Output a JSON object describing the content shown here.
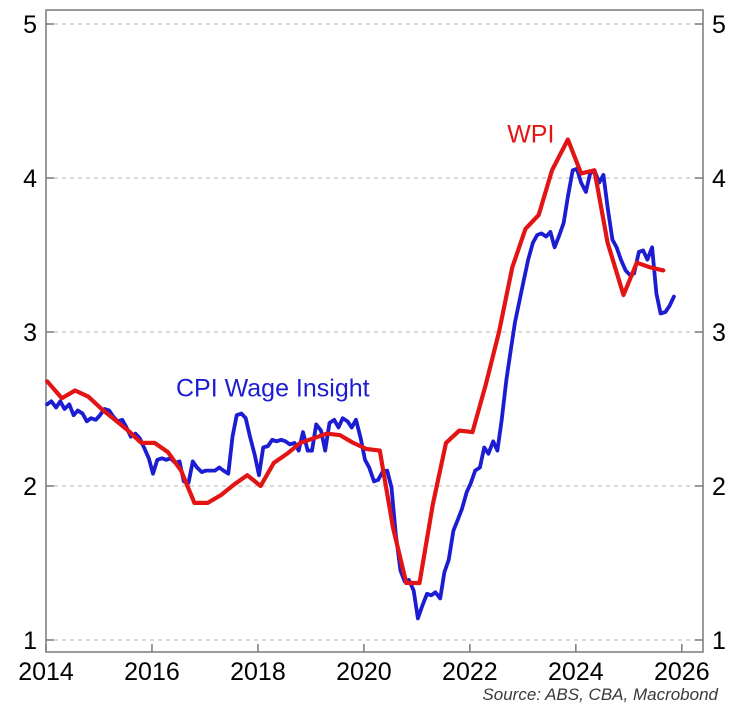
{
  "chart_data": {
    "type": "line",
    "title": "",
    "xlabel": "",
    "ylabel": "",
    "source": "Source: ABS, CBA, Macrobond",
    "grid": {
      "horizontal": true,
      "style": "dashed"
    },
    "x_axis": {
      "ticks": [
        2014,
        2016,
        2018,
        2020,
        2022,
        2024,
        2026
      ],
      "range": [
        2014,
        2026.4
      ]
    },
    "y_axis": {
      "ticks": [
        1,
        2,
        3,
        4,
        5
      ],
      "range": [
        0.922,
        5.091
      ],
      "labels_on": "both"
    },
    "series": [
      {
        "name": "CPI Wage Insight",
        "color": "#1c1cd2",
        "line_width": 3.8,
        "frequency": "monthly",
        "label": {
          "text": "CPI Wage Insight",
          "x": 2018.28,
          "y": 2.64
        },
        "points": [
          [
            2014.02,
            2.53
          ],
          [
            2014.1,
            2.55
          ],
          [
            2014.19,
            2.51
          ],
          [
            2014.27,
            2.55
          ],
          [
            2014.35,
            2.5
          ],
          [
            2014.44,
            2.53
          ],
          [
            2014.52,
            2.46
          ],
          [
            2014.6,
            2.49
          ],
          [
            2014.69,
            2.47
          ],
          [
            2014.77,
            2.42
          ],
          [
            2014.85,
            2.44
          ],
          [
            2014.94,
            2.43
          ],
          [
            2015.02,
            2.46
          ],
          [
            2015.1,
            2.5
          ],
          [
            2015.19,
            2.49
          ],
          [
            2015.27,
            2.45
          ],
          [
            2015.35,
            2.42
          ],
          [
            2015.44,
            2.43
          ],
          [
            2015.52,
            2.38
          ],
          [
            2015.6,
            2.32
          ],
          [
            2015.69,
            2.34
          ],
          [
            2015.77,
            2.31
          ],
          [
            2015.85,
            2.25
          ],
          [
            2015.94,
            2.18
          ],
          [
            2016.02,
            2.08
          ],
          [
            2016.1,
            2.17
          ],
          [
            2016.19,
            2.18
          ],
          [
            2016.27,
            2.17
          ],
          [
            2016.35,
            2.18
          ],
          [
            2016.44,
            2.15
          ],
          [
            2016.52,
            2.16
          ],
          [
            2016.6,
            2.03
          ],
          [
            2016.69,
            2.02
          ],
          [
            2016.77,
            2.16
          ],
          [
            2016.85,
            2.12
          ],
          [
            2016.94,
            2.09
          ],
          [
            2017.02,
            2.1
          ],
          [
            2017.1,
            2.1
          ],
          [
            2017.19,
            2.1
          ],
          [
            2017.27,
            2.12
          ],
          [
            2017.35,
            2.1
          ],
          [
            2017.44,
            2.08
          ],
          [
            2017.52,
            2.32
          ],
          [
            2017.6,
            2.46
          ],
          [
            2017.69,
            2.47
          ],
          [
            2017.77,
            2.44
          ],
          [
            2017.85,
            2.32
          ],
          [
            2017.94,
            2.2
          ],
          [
            2018.02,
            2.07
          ],
          [
            2018.1,
            2.25
          ],
          [
            2018.19,
            2.26
          ],
          [
            2018.27,
            2.3
          ],
          [
            2018.35,
            2.29
          ],
          [
            2018.44,
            2.3
          ],
          [
            2018.52,
            2.29
          ],
          [
            2018.6,
            2.27
          ],
          [
            2018.69,
            2.28
          ],
          [
            2018.77,
            2.23
          ],
          [
            2018.85,
            2.35
          ],
          [
            2018.94,
            2.23
          ],
          [
            2019.02,
            2.23
          ],
          [
            2019.1,
            2.4
          ],
          [
            2019.19,
            2.36
          ],
          [
            2019.27,
            2.23
          ],
          [
            2019.35,
            2.41
          ],
          [
            2019.44,
            2.43
          ],
          [
            2019.52,
            2.38
          ],
          [
            2019.6,
            2.44
          ],
          [
            2019.69,
            2.42
          ],
          [
            2019.77,
            2.38
          ],
          [
            2019.85,
            2.43
          ],
          [
            2019.94,
            2.31
          ],
          [
            2020.02,
            2.17
          ],
          [
            2020.1,
            2.12
          ],
          [
            2020.19,
            2.03
          ],
          [
            2020.27,
            2.04
          ],
          [
            2020.35,
            2.09
          ],
          [
            2020.44,
            2.1
          ],
          [
            2020.52,
            1.99
          ],
          [
            2020.6,
            1.69
          ],
          [
            2020.69,
            1.45
          ],
          [
            2020.77,
            1.38
          ],
          [
            2020.85,
            1.39
          ],
          [
            2020.94,
            1.32
          ],
          [
            2021.02,
            1.14
          ],
          [
            2021.1,
            1.22
          ],
          [
            2021.19,
            1.3
          ],
          [
            2021.27,
            1.29
          ],
          [
            2021.35,
            1.31
          ],
          [
            2021.44,
            1.27
          ],
          [
            2021.52,
            1.44
          ],
          [
            2021.6,
            1.52
          ],
          [
            2021.69,
            1.71
          ],
          [
            2021.77,
            1.78
          ],
          [
            2021.85,
            1.85
          ],
          [
            2021.94,
            1.96
          ],
          [
            2022.02,
            2.02
          ],
          [
            2022.1,
            2.1
          ],
          [
            2022.19,
            2.12
          ],
          [
            2022.27,
            2.25
          ],
          [
            2022.35,
            2.21
          ],
          [
            2022.44,
            2.29
          ],
          [
            2022.52,
            2.23
          ],
          [
            2022.6,
            2.43
          ],
          [
            2022.69,
            2.69
          ],
          [
            2022.77,
            2.88
          ],
          [
            2022.85,
            3.06
          ],
          [
            2022.94,
            3.21
          ],
          [
            2023.02,
            3.34
          ],
          [
            2023.1,
            3.47
          ],
          [
            2023.19,
            3.58
          ],
          [
            2023.27,
            3.63
          ],
          [
            2023.35,
            3.64
          ],
          [
            2023.44,
            3.62
          ],
          [
            2023.52,
            3.65
          ],
          [
            2023.6,
            3.55
          ],
          [
            2023.69,
            3.63
          ],
          [
            2023.77,
            3.71
          ],
          [
            2023.85,
            3.88
          ],
          [
            2023.94,
            4.05
          ],
          [
            2024.02,
            4.06
          ],
          [
            2024.1,
            3.97
          ],
          [
            2024.19,
            3.91
          ],
          [
            2024.27,
            4.03
          ],
          [
            2024.35,
            4.05
          ],
          [
            2024.44,
            3.97
          ],
          [
            2024.52,
            4.02
          ],
          [
            2024.6,
            3.81
          ],
          [
            2024.69,
            3.6
          ],
          [
            2024.77,
            3.55
          ],
          [
            2024.85,
            3.47
          ],
          [
            2024.94,
            3.4
          ],
          [
            2025.02,
            3.37
          ],
          [
            2025.1,
            3.38
          ],
          [
            2025.19,
            3.52
          ],
          [
            2025.27,
            3.53
          ],
          [
            2025.35,
            3.47
          ],
          [
            2025.44,
            3.55
          ],
          [
            2025.52,
            3.25
          ],
          [
            2025.6,
            3.12
          ],
          [
            2025.69,
            3.13
          ],
          [
            2025.77,
            3.17
          ],
          [
            2025.85,
            3.23
          ]
        ]
      },
      {
        "name": "WPI",
        "color": "#e31414",
        "line_width": 4.2,
        "frequency": "quarterly",
        "label": {
          "text": "WPI",
          "x": 2023.15,
          "y": 4.29
        },
        "points": [
          [
            2014.02,
            2.68
          ],
          [
            2014.3,
            2.57
          ],
          [
            2014.55,
            2.62
          ],
          [
            2014.8,
            2.58
          ],
          [
            2015.05,
            2.5
          ],
          [
            2015.3,
            2.43
          ],
          [
            2015.55,
            2.36
          ],
          [
            2015.8,
            2.28
          ],
          [
            2016.05,
            2.28
          ],
          [
            2016.3,
            2.22
          ],
          [
            2016.55,
            2.1
          ],
          [
            2016.8,
            1.89
          ],
          [
            2017.05,
            1.89
          ],
          [
            2017.3,
            1.94
          ],
          [
            2017.55,
            2.01
          ],
          [
            2017.8,
            2.07
          ],
          [
            2018.05,
            2.0
          ],
          [
            2018.3,
            2.15
          ],
          [
            2018.55,
            2.21
          ],
          [
            2018.8,
            2.28
          ],
          [
            2019.05,
            2.31
          ],
          [
            2019.3,
            2.34
          ],
          [
            2019.55,
            2.33
          ],
          [
            2019.8,
            2.28
          ],
          [
            2020.05,
            2.24
          ],
          [
            2020.3,
            2.23
          ],
          [
            2020.55,
            1.73
          ],
          [
            2020.8,
            1.37
          ],
          [
            2021.05,
            1.37
          ],
          [
            2021.3,
            1.88
          ],
          [
            2021.55,
            2.28
          ],
          [
            2021.8,
            2.36
          ],
          [
            2022.05,
            2.35
          ],
          [
            2022.3,
            2.66
          ],
          [
            2022.55,
            3.0
          ],
          [
            2022.8,
            3.42
          ],
          [
            2023.05,
            3.67
          ],
          [
            2023.3,
            3.76
          ],
          [
            2023.55,
            4.05
          ],
          [
            2023.85,
            4.25
          ],
          [
            2024.1,
            4.03
          ],
          [
            2024.35,
            4.05
          ],
          [
            2024.6,
            3.58
          ],
          [
            2024.9,
            3.24
          ],
          [
            2025.15,
            3.45
          ],
          [
            2025.4,
            3.42
          ],
          [
            2025.65,
            3.4
          ]
        ]
      }
    ]
  }
}
